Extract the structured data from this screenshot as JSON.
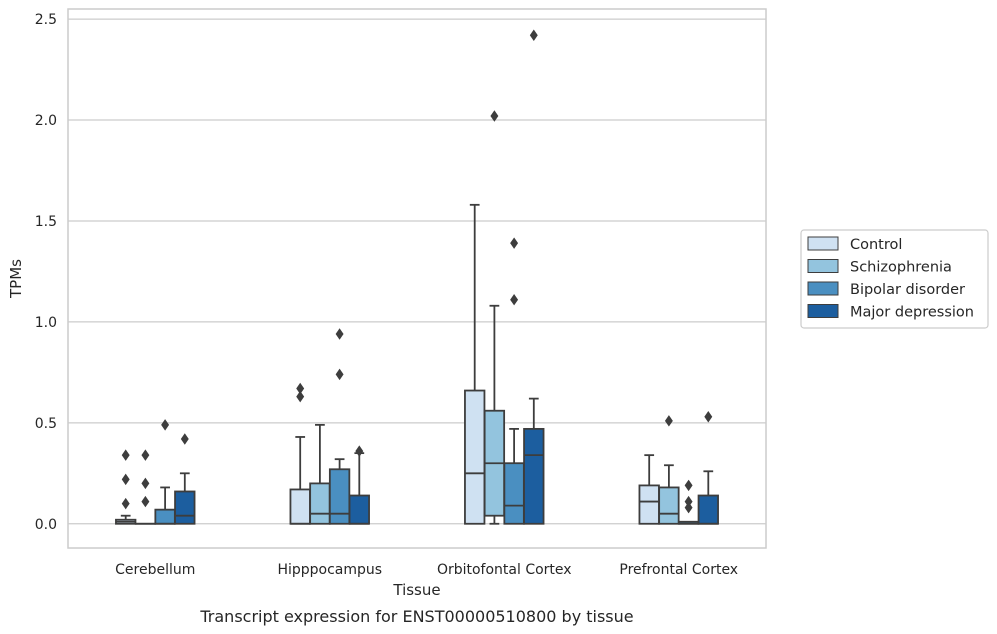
{
  "caption": "Transcript expression for ENST00000510800 by tissue",
  "chart_data": {
    "type": "box",
    "xlabel": "Tissue",
    "ylabel": "TPMs",
    "ylim": [
      -0.12,
      2.55
    ],
    "yticks": [
      "0.0",
      "0.5",
      "1.0",
      "1.5",
      "2.0",
      "2.5"
    ],
    "grid": true,
    "legend_position": "right",
    "categories": [
      "Cerebellum",
      "Hipppocampus",
      "Orbitofontal Cortex",
      "Prefrontal Cortex"
    ],
    "series": [
      {
        "name": "Control",
        "color": "#cfe1f2",
        "boxes": [
          {
            "q1": 0.0,
            "median": 0.01,
            "q3": 0.02,
            "whislo": 0.0,
            "whishi": 0.04,
            "fliers": [
              0.1,
              0.22,
              0.34
            ]
          },
          {
            "q1": 0.0,
            "median": 0.0,
            "q3": 0.17,
            "whislo": 0.0,
            "whishi": 0.43,
            "fliers": [
              0.63,
              0.67
            ]
          },
          {
            "q1": 0.0,
            "median": 0.25,
            "q3": 0.66,
            "whislo": 0.0,
            "whishi": 1.58,
            "fliers": []
          },
          {
            "q1": 0.0,
            "median": 0.11,
            "q3": 0.19,
            "whislo": 0.0,
            "whishi": 0.34,
            "fliers": []
          }
        ]
      },
      {
        "name": "Schizophrenia",
        "color": "#93c4de",
        "boxes": [
          {
            "q1": 0.0,
            "median": 0.0,
            "q3": 0.0,
            "whislo": 0.0,
            "whishi": 0.0,
            "fliers": [
              0.11,
              0.2,
              0.34
            ]
          },
          {
            "q1": 0.0,
            "median": 0.05,
            "q3": 0.2,
            "whislo": 0.0,
            "whishi": 0.49,
            "fliers": []
          },
          {
            "q1": 0.04,
            "median": 0.3,
            "q3": 0.56,
            "whislo": 0.0,
            "whishi": 1.08,
            "fliers": [
              2.02
            ]
          },
          {
            "q1": 0.0,
            "median": 0.05,
            "q3": 0.18,
            "whislo": 0.0,
            "whishi": 0.29,
            "fliers": [
              0.51
            ]
          }
        ]
      },
      {
        "name": "Bipolar disorder",
        "color": "#4a8fc1",
        "boxes": [
          {
            "q1": 0.0,
            "median": 0.0,
            "q3": 0.07,
            "whislo": 0.0,
            "whishi": 0.18,
            "fliers": [
              0.49
            ]
          },
          {
            "q1": 0.0,
            "median": 0.05,
            "q3": 0.27,
            "whislo": 0.0,
            "whishi": 0.32,
            "fliers": [
              0.74,
              0.94
            ]
          },
          {
            "q1": 0.0,
            "median": 0.09,
            "q3": 0.3,
            "whislo": 0.0,
            "whishi": 0.47,
            "fliers": [
              1.11,
              1.39
            ]
          },
          {
            "q1": 0.0,
            "median": 0.0,
            "q3": 0.01,
            "whislo": 0.0,
            "whishi": 0.01,
            "fliers": [
              0.08,
              0.11,
              0.19
            ]
          }
        ]
      },
      {
        "name": "Major depression",
        "color": "#1c5e9f",
        "boxes": [
          {
            "q1": 0.0,
            "median": 0.04,
            "q3": 0.16,
            "whislo": 0.0,
            "whishi": 0.25,
            "fliers": [
              0.42
            ]
          },
          {
            "q1": 0.0,
            "median": 0.0,
            "q3": 0.14,
            "whislo": 0.0,
            "whishi": 0.35,
            "fliers": [
              0.36
            ]
          },
          {
            "q1": 0.0,
            "median": 0.34,
            "q3": 0.47,
            "whislo": 0.0,
            "whishi": 0.62,
            "fliers": [
              2.42
            ]
          },
          {
            "q1": 0.0,
            "median": 0.0,
            "q3": 0.14,
            "whislo": 0.0,
            "whishi": 0.26,
            "fliers": [
              0.53
            ]
          }
        ]
      }
    ]
  }
}
